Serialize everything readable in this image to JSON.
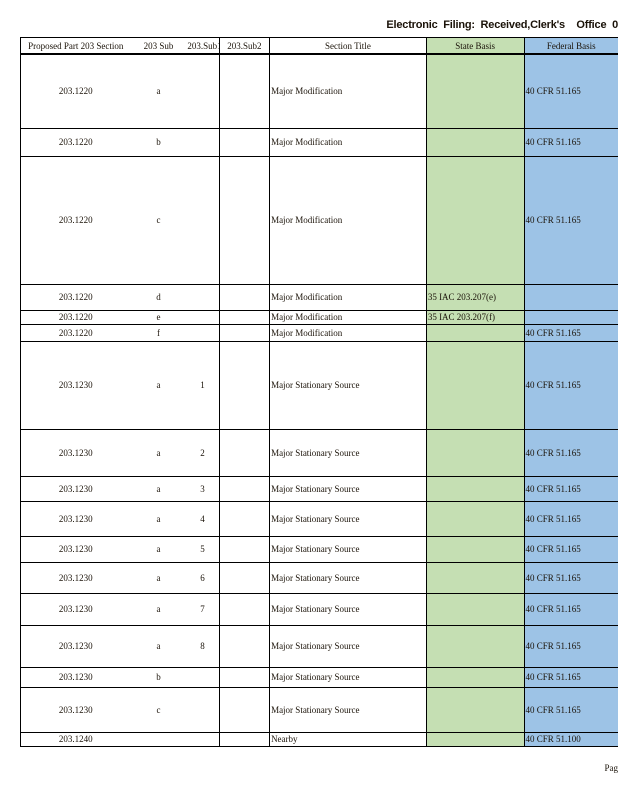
{
  "header": {
    "text": "Electronic  Filing:  Received,Clerk's    Office  0"
  },
  "columns": [
    "Proposed Part 203 Section",
    "203 Sub",
    "203.Sub1",
    "203.Sub2",
    "Section Title",
    "State Basis",
    "Federal Basis"
  ],
  "colors": {
    "state_basis": "#c5dfb3",
    "federal_basis": "#9dc3e6"
  },
  "rows": [
    [
      "203.1220",
      "a",
      "",
      "",
      "Major Modification",
      "",
      "40 CFR 51.165"
    ],
    [
      "203.1220",
      "b",
      "",
      "",
      "Major Modification",
      "",
      "40 CFR 51.165"
    ],
    [
      "203.1220",
      "c",
      "",
      "",
      "Major Modification",
      "",
      "40 CFR 51.165"
    ],
    [
      "203.1220",
      "d",
      "",
      "",
      "Major Modification",
      "35 IAC 203.207(e)",
      ""
    ],
    [
      "203.1220",
      "e",
      "",
      "",
      "Major Modification",
      "35 IAC 203.207(f)",
      ""
    ],
    [
      "203.1220",
      "f",
      "",
      "",
      "Major Modification",
      "",
      "40 CFR 51.165"
    ],
    [
      "203.1230",
      "a",
      "1",
      "",
      "Major Stationary Source",
      "",
      "40 CFR 51.165"
    ],
    [
      "203.1230",
      "a",
      "2",
      "",
      "Major Stationary Source",
      "",
      "40 CFR 51.165"
    ],
    [
      "203.1230",
      "a",
      "3",
      "",
      "Major Stationary Source",
      "",
      "40 CFR 51.165"
    ],
    [
      "203.1230",
      "a",
      "4",
      "",
      "Major Stationary Source",
      "",
      "40 CFR 51.165"
    ],
    [
      "203.1230",
      "a",
      "5",
      "",
      "Major Stationary Source",
      "",
      "40 CFR 51.165"
    ],
    [
      "203.1230",
      "a",
      "6",
      "",
      "Major Stationary Source",
      "",
      "40 CFR 51.165"
    ],
    [
      "203.1230",
      "a",
      "7",
      "",
      "Major Stationary Source",
      "",
      "40 CFR 51.165"
    ],
    [
      "203.1230",
      "a",
      "8",
      "",
      "Major Stationary Source",
      "",
      "40 CFR 51.165"
    ],
    [
      "203.1230",
      "b",
      "",
      "",
      "Major Stationary Source",
      "",
      "40 CFR 51.165"
    ],
    [
      "203.1230",
      "c",
      "",
      "",
      "Major Stationary Source",
      "",
      "40 CFR 51.165"
    ],
    [
      "203.1240",
      "",
      "",
      "",
      "Nearby",
      "",
      "40 CFR 51.100"
    ]
  ],
  "footer": {
    "page": "Pag"
  }
}
